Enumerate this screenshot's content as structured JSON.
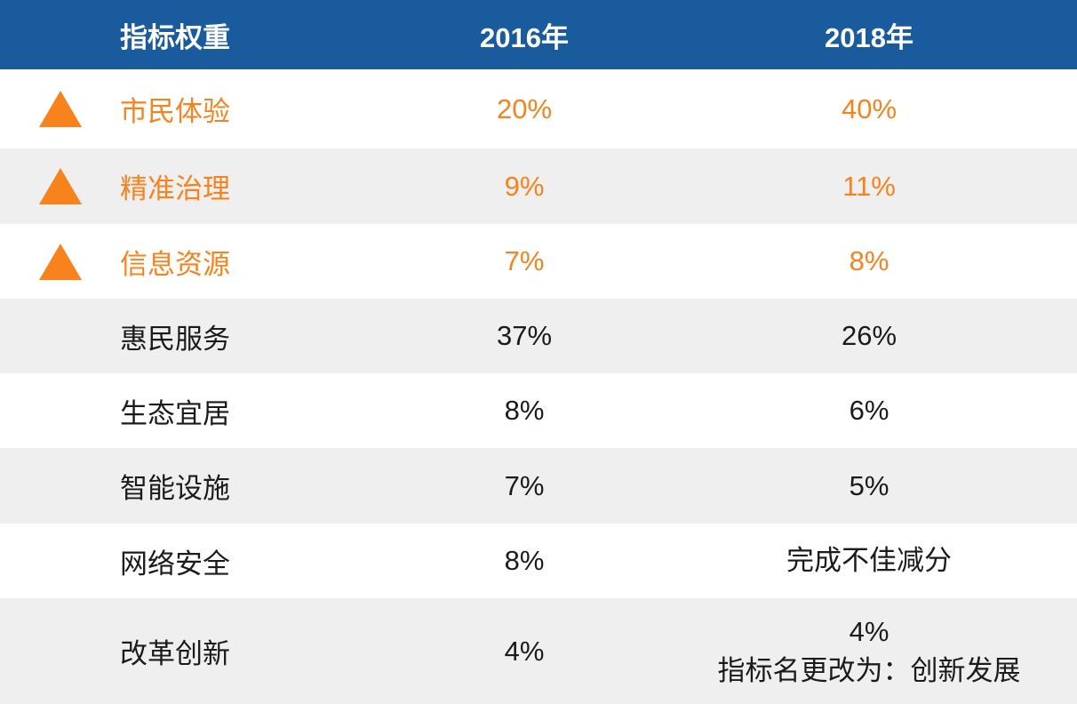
{
  "table": {
    "headers": [
      "指标权重",
      "2016年",
      "2018年"
    ],
    "rows": [
      {
        "name": "市民体验",
        "y2016": "20%",
        "y2018": "40%",
        "highlighted": true
      },
      {
        "name": "精准治理",
        "y2016": "9%",
        "y2018": "11%",
        "highlighted": true
      },
      {
        "name": "信息资源",
        "y2016": "7%",
        "y2018": "8%",
        "highlighted": true
      },
      {
        "name": "惠民服务",
        "y2016": "37%",
        "y2018": "26%",
        "highlighted": false
      },
      {
        "name": "生态宜居",
        "y2016": "8%",
        "y2018": "6%",
        "highlighted": false
      },
      {
        "name": "智能设施",
        "y2016": "7%",
        "y2018": "5%",
        "highlighted": false
      },
      {
        "name": "网络安全",
        "y2016": "8%",
        "y2018": "完成不佳减分",
        "highlighted": false
      },
      {
        "name": "改革创新",
        "y2016": "4%",
        "y2018": "4%",
        "y2018_note": "指标名更改为：创新发展",
        "highlighted": false
      }
    ]
  },
  "icons": {
    "highlight_marker": "triangle-up"
  },
  "colors": {
    "header_bg": "#1A5B9E",
    "header_text": "#FFFFFF",
    "highlight_orange": "#F8821C",
    "zebra_gray": "#EFEFEF",
    "body_text": "#1B1B1B"
  },
  "chart_data": {
    "type": "table",
    "title": "指标权重",
    "columns": [
      "指标权重",
      "2016年",
      "2018年"
    ],
    "categories": [
      "市民体验",
      "精准治理",
      "信息资源",
      "惠民服务",
      "生态宜居",
      "智能设施",
      "网络安全",
      "改革创新"
    ],
    "series": [
      {
        "name": "2016年",
        "values": [
          20,
          9,
          7,
          37,
          8,
          7,
          8,
          4
        ]
      },
      {
        "name": "2018年",
        "values": [
          40,
          11,
          8,
          26,
          6,
          5,
          null,
          4
        ]
      }
    ],
    "annotations": [
      {
        "category": "网络安全",
        "column": "2018年",
        "text": "完成不佳减分"
      },
      {
        "category": "改革创新",
        "column": "2018年",
        "text": "指标名更改为：创新发展"
      }
    ],
    "highlighted_categories": [
      "市民体验",
      "精准治理",
      "信息资源"
    ],
    "units": "%"
  }
}
